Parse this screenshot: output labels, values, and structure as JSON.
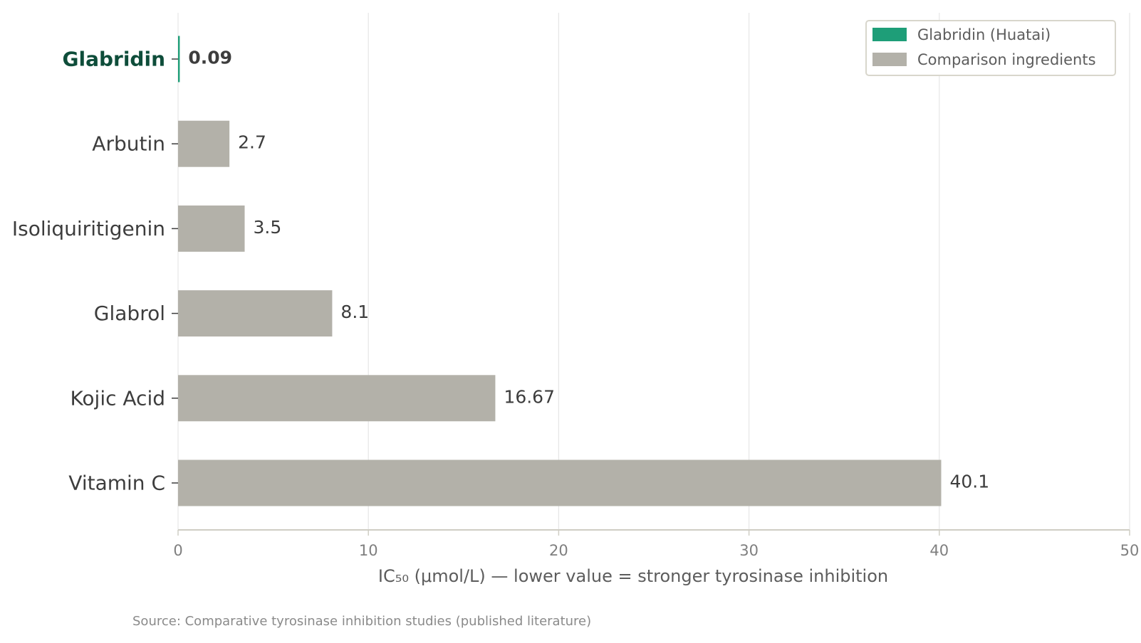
{
  "chart_data": {
    "type": "bar",
    "orientation": "horizontal",
    "categories": [
      "Glabridin",
      "Arbutin",
      "Isoliquiritigenin",
      "Glabrol",
      "Kojic Acid",
      "Vitamin C"
    ],
    "values": [
      0.09,
      2.7,
      3.5,
      8.1,
      16.67,
      40.1
    ],
    "value_labels": [
      "0.09",
      "2.7",
      "3.5",
      "8.1",
      "16.67",
      "40.1"
    ],
    "highlight_index": 0,
    "xlabel": "IC₅₀ (μmol/L)  —  lower value = stronger tyrosinase inhibition",
    "ylabel": "",
    "xlim": [
      0,
      50
    ],
    "xticks": [
      0,
      10,
      20,
      30,
      40,
      50
    ],
    "grid": "vertical",
    "legend": {
      "placement": "top-right",
      "entries": [
        {
          "label": "Glabridin (Huatai)",
          "color": "#1e9e78"
        },
        {
          "label": "Comparison ingredients",
          "color": "#b3b1a9"
        }
      ]
    },
    "source": "Source: Comparative tyrosinase inhibition studies (published literature)",
    "colors": {
      "highlight": "#1e9e78",
      "highlight_text": "#0e4d3a",
      "comparison": "#b3b1a9",
      "grid": "#e6e6e6",
      "axis": "#cfcdc4"
    }
  }
}
